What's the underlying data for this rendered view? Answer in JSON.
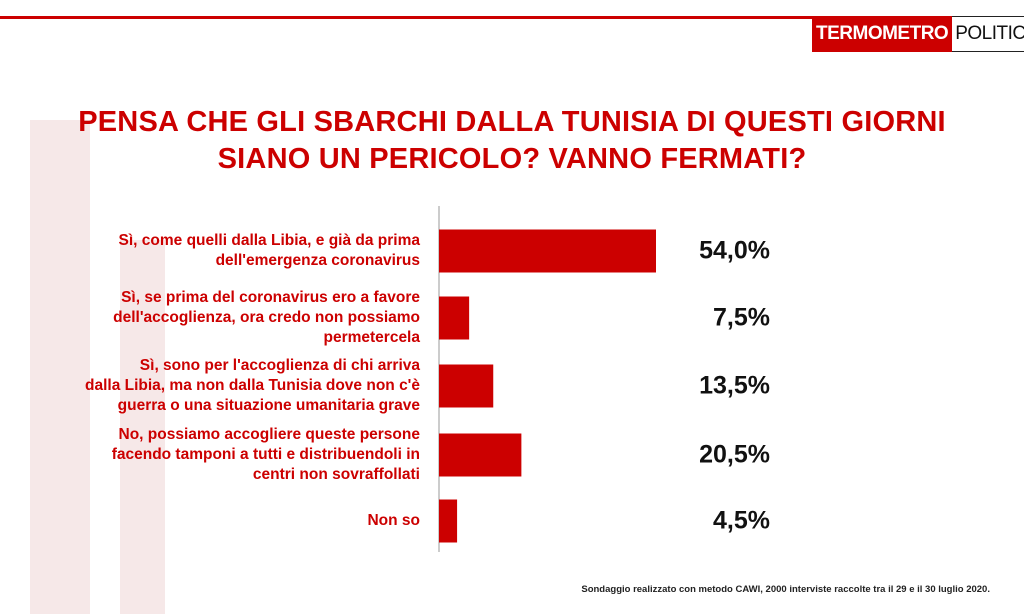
{
  "brand": {
    "part1": "TERMOMETRO",
    "part2": "POLITICO"
  },
  "colors": {
    "accent": "#cc0000",
    "text": "#111111",
    "watermark": "#f6e8e8"
  },
  "chart_data": {
    "type": "bar",
    "orientation": "horizontal",
    "title_lines": [
      "PENSA CHE GLI SBARCHI DALLA TUNISIA DI QUESTI GIORNI",
      "SIANO UN PERICOLO? VANNO FERMATI?"
    ],
    "categories": [
      [
        "Sì, come quelli dalla Libia, e già  da prima",
        "dell'emergenza coronavirus"
      ],
      [
        "Sì, se prima del coronavirus ero a favore",
        "dell'accoglienza, ora credo non possiamo",
        "permetercela"
      ],
      [
        "Sì, sono per l'accoglienza di chi arriva",
        "dalla Libia, ma non dalla Tunisia dove non c'è",
        "guerra o una situazione umanitaria grave"
      ],
      [
        "No, possiamo accogliere queste persone",
        "facendo tamponi a tutti e distribuendoli in",
        "centri non sovraffollati"
      ],
      [
        "Non so"
      ]
    ],
    "values": [
      54.0,
      7.5,
      13.5,
      20.5,
      4.5
    ],
    "value_labels": [
      "54,0%",
      "7,5%",
      "13,5%",
      "20,5%",
      "4,5%"
    ],
    "xlim": [
      0,
      100
    ],
    "grid": false,
    "legend": "none"
  },
  "footnote": "Sondaggio realizzato con metodo CAWI, 2000 interviste raccolte tra il 29 e il 30 luglio 2020."
}
